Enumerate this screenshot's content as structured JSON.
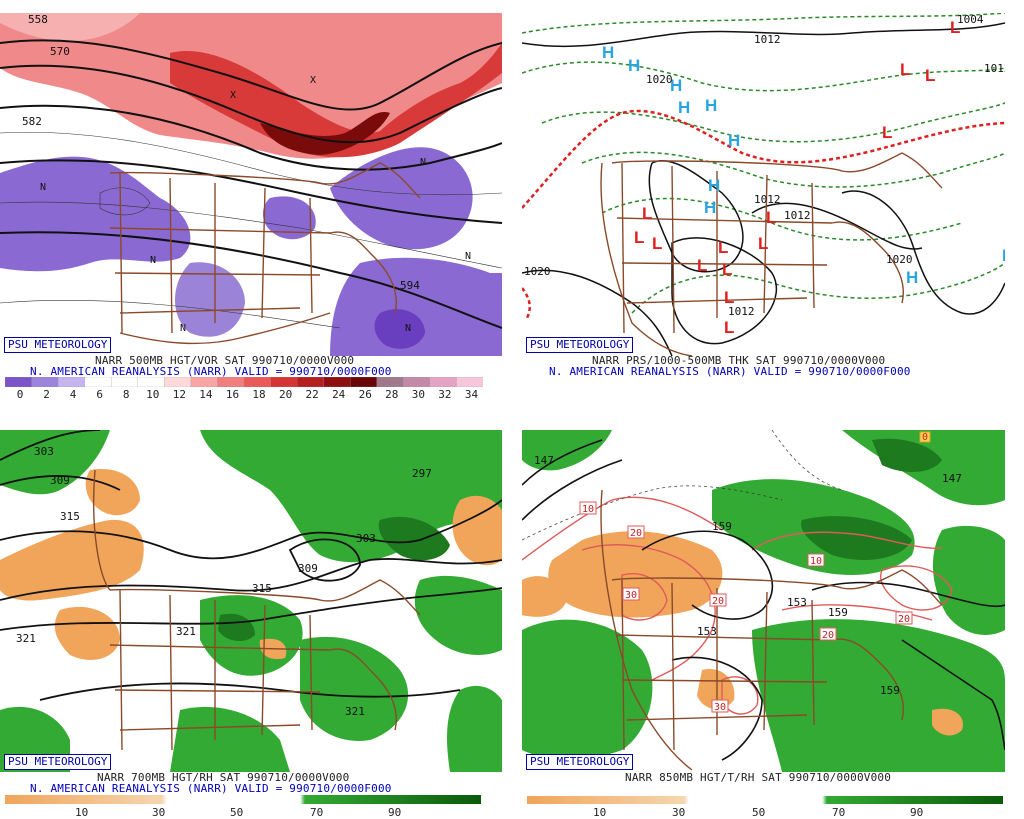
{
  "branding": "PSU METEOROLOGY",
  "panels": {
    "tl": {
      "line1": "NARR 500MB HGT/VOR SAT 990710/0000V000",
      "line2": "N. AMERICAN REANALYSIS (NARR) VALID = 990710/0000F000",
      "contour_labels": [
        "558",
        "570",
        "582",
        "594"
      ],
      "vort_centers": [
        "N",
        "X"
      ],
      "scale_labels": [
        "0",
        "2",
        "4",
        "6",
        "8",
        "10",
        "12",
        "14",
        "16",
        "18",
        "20",
        "22",
        "24",
        "26",
        "28",
        "30",
        "32",
        "34"
      ],
      "scale_colors": [
        "#7a55c8",
        "#9c84dc",
        "#c4b5ee",
        "#ffffff",
        "#ffffff",
        "#ffffff",
        "#ffd9d9",
        "#f7a5a5",
        "#f27f7f",
        "#ea5a5a",
        "#d43434",
        "#b51f1f",
        "#8e0f0f",
        "#6a0606",
        "#a07a8a",
        "#c38aa8",
        "#e5a4c3",
        "#f6c6da"
      ]
    },
    "tr": {
      "line1": "NARR PRS/1000-500MB THK SAT 990710/0000V000",
      "line2": "N. AMERICAN REANALYSIS (NARR) VALID = 990710/0000F000",
      "contour_labels": [
        "1012",
        "1020",
        "1004"
      ],
      "highs": "H",
      "lows": "L",
      "colors": {
        "high": "#2aa5e0",
        "low": "#e02020",
        "thickness": "#2a8a2a",
        "freeze": "#e02020"
      }
    },
    "bl": {
      "line1": "NARR 700MB HGT/RH SAT 990710/0000V000",
      "line2": "N. AMERICAN REANALYSIS (NARR) VALID = 990710/0000F000",
      "contour_labels": [
        "303",
        "309",
        "315",
        "321",
        "297",
        "303",
        "309",
        "315",
        "321",
        "321"
      ],
      "scale_labels": [
        "10",
        "30",
        "50",
        "70",
        "90"
      ]
    },
    "br": {
      "line1": "NARR 850MB HGT/T/RH SAT 990710/0000V000",
      "contour_labels": [
        "147",
        "153",
        "159",
        "153",
        "159",
        "159",
        "147"
      ],
      "temp_labels": [
        "10",
        "20",
        "30",
        "20",
        "10",
        "20",
        "20",
        "20",
        "30",
        "0"
      ],
      "scale_labels": [
        "10",
        "30",
        "50",
        "70",
        "90"
      ]
    }
  }
}
